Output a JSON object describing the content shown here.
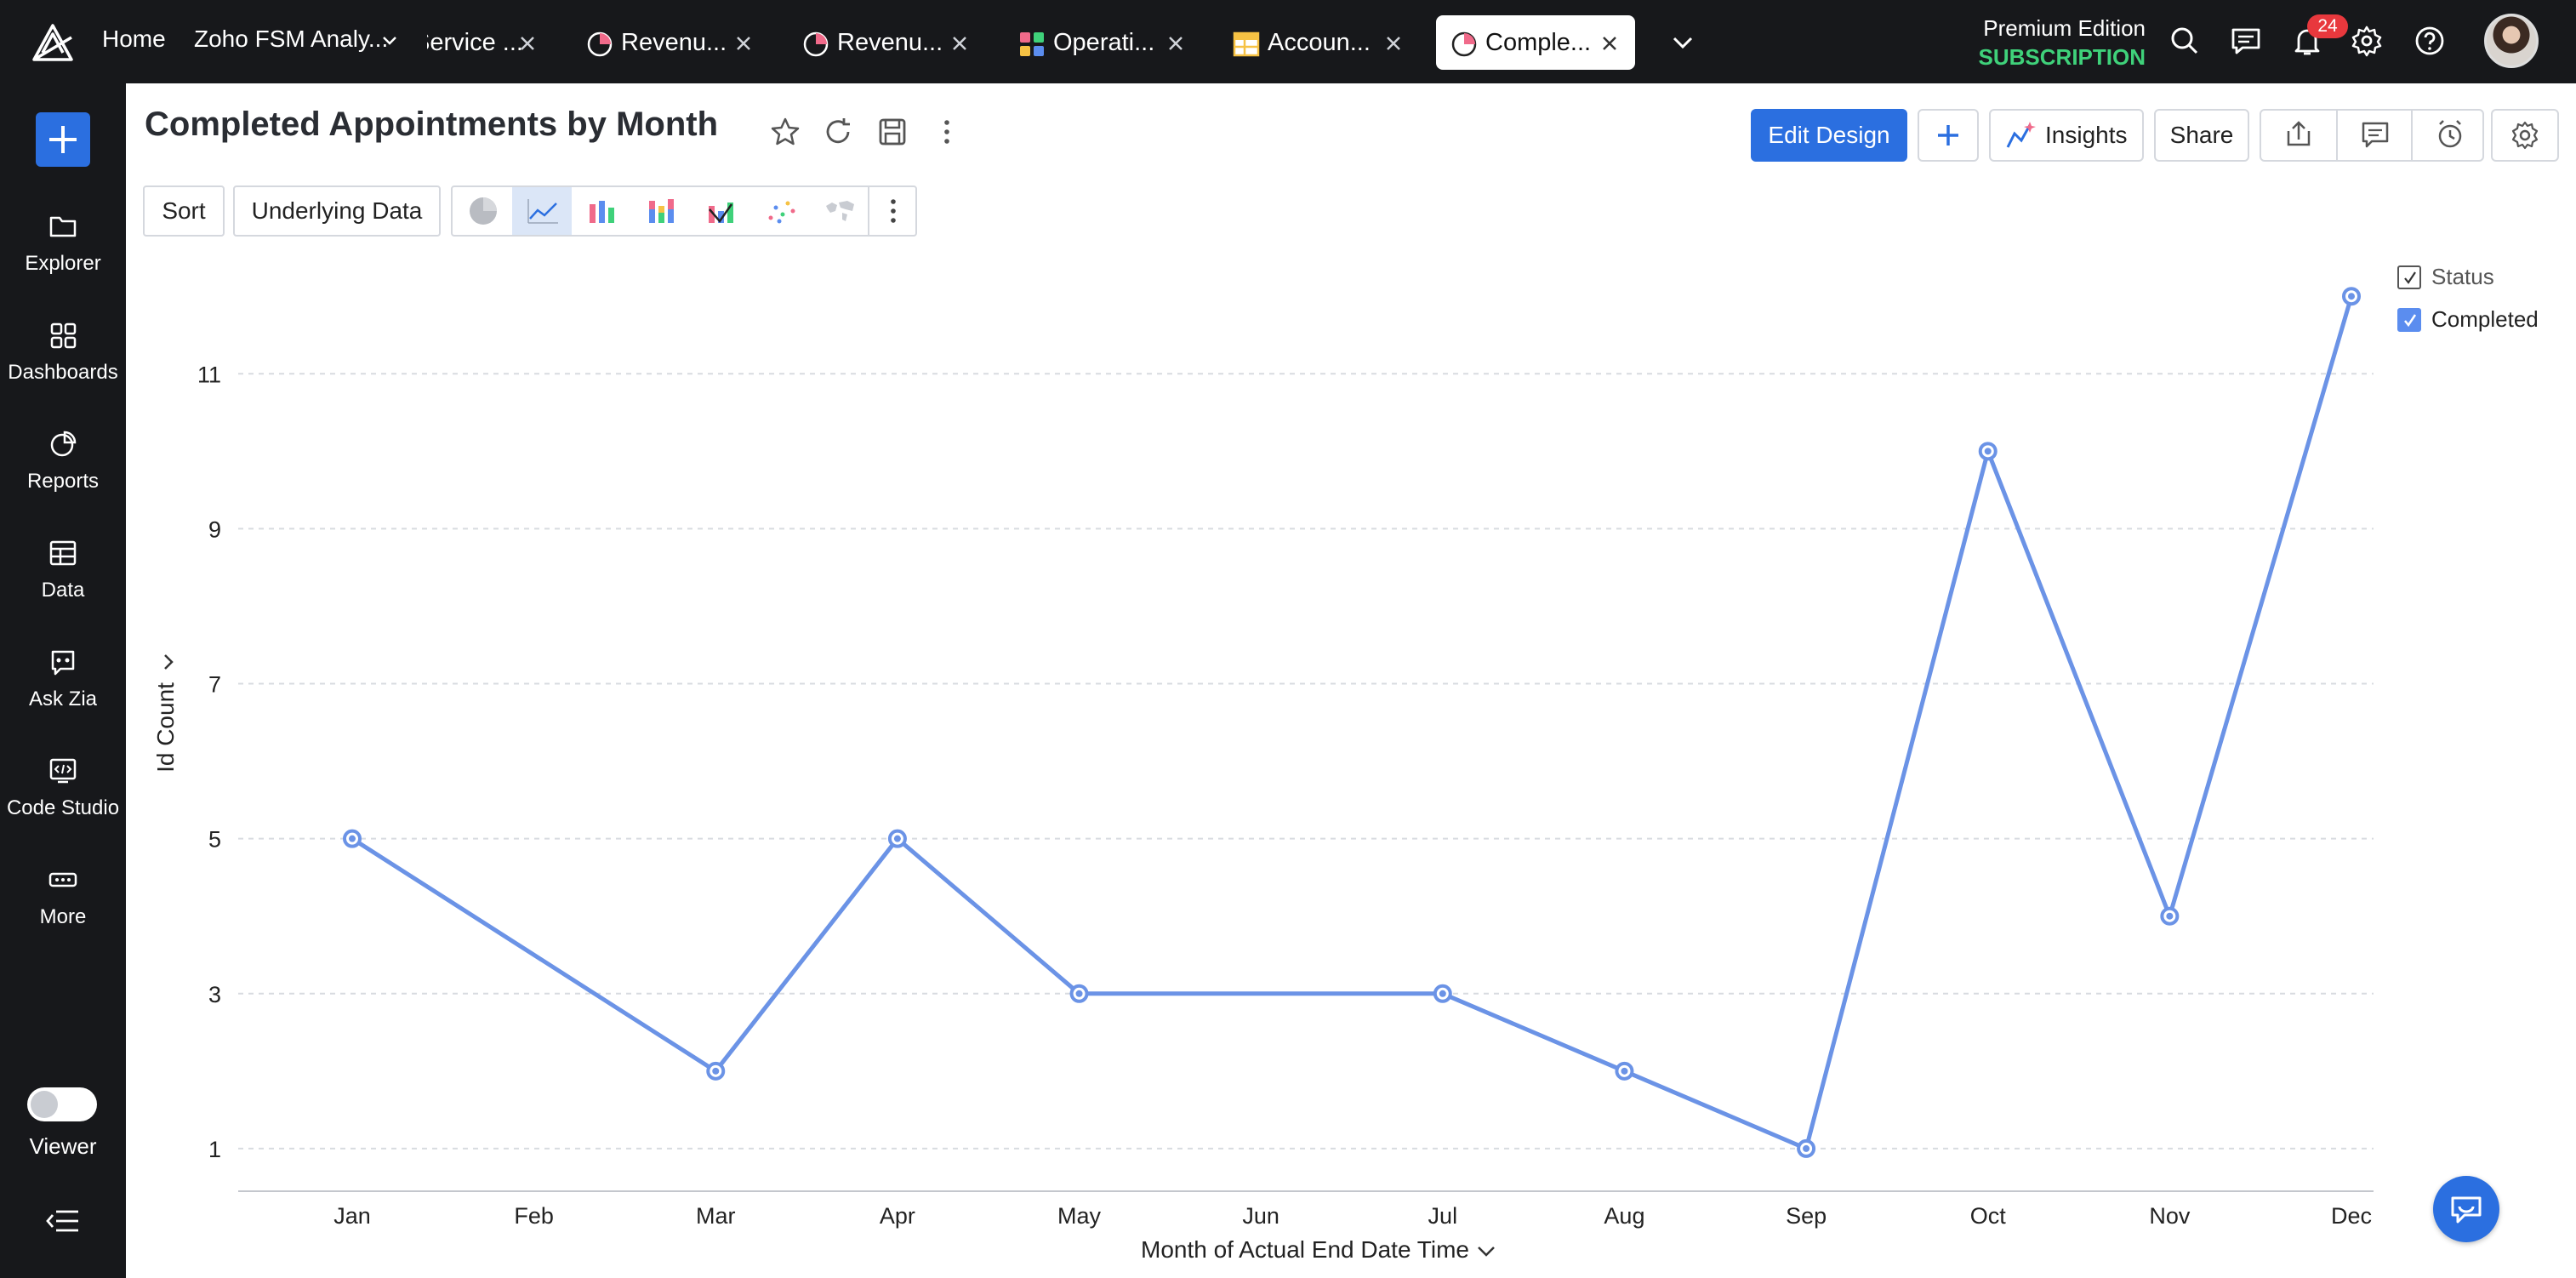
{
  "colors": {
    "accent": "#2b6fe0",
    "series": "#6b93e6",
    "topbar": "#17181b",
    "subscription": "#3fd17a",
    "badge": "#e8383d"
  },
  "topbar": {
    "home": "Home",
    "workspace": "Zoho FSM Analy...",
    "tabs": [
      {
        "label": "Service ...",
        "icon": "none"
      },
      {
        "label": "Revenu...",
        "icon": "pie-chart-icon"
      },
      {
        "label": "Revenu...",
        "icon": "pie-chart-icon"
      },
      {
        "label": "Operati...",
        "icon": "dashboard-icon"
      },
      {
        "label": "Accoun...",
        "icon": "table-icon"
      },
      {
        "label": "Comple...",
        "icon": "pie-chart-icon",
        "active": true
      }
    ],
    "edition": "Premium Edition",
    "subscription": "SUBSCRIPTION",
    "notification_count": "24"
  },
  "sidebar": {
    "items": [
      {
        "label": "Explorer",
        "icon": "folder-icon"
      },
      {
        "label": "Dashboards",
        "icon": "grid-icon"
      },
      {
        "label": "Reports",
        "icon": "reports-icon"
      },
      {
        "label": "Data",
        "icon": "table-icon"
      },
      {
        "label": "Ask Zia",
        "icon": "zia-icon"
      },
      {
        "label": "Code Studio",
        "icon": "code-icon"
      },
      {
        "label": "More",
        "icon": "more-icon"
      }
    ],
    "viewer_label": "Viewer"
  },
  "report": {
    "title": "Completed Appointments by Month",
    "edit_design": "Edit Design",
    "insights": "Insights",
    "share": "Share",
    "sort": "Sort",
    "underlying_data": "Underlying Data",
    "active_chart_type": "line"
  },
  "chart_data": {
    "type": "line",
    "categories": [
      "Jan",
      "Feb",
      "Mar",
      "Apr",
      "May",
      "Jun",
      "Jul",
      "Aug",
      "Sep",
      "Oct",
      "Nov",
      "Dec"
    ],
    "series": [
      {
        "name": "Completed",
        "values": [
          5,
          null,
          2,
          5,
          3,
          null,
          3,
          2,
          1,
          10,
          4,
          12
        ]
      }
    ],
    "yticks": [
      1,
      3,
      5,
      7,
      9,
      11
    ],
    "ylim": [
      0.45,
      12.2
    ],
    "xlabel": "Month of Actual End Date Time",
    "ylabel": "Id Count",
    "legend_title": "Status",
    "legend_position": "top-right",
    "grid": true
  }
}
